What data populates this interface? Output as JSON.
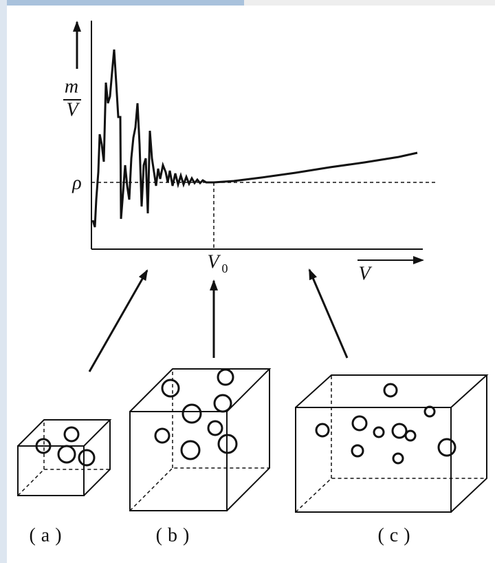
{
  "graph": {
    "y_label_numerator": "m",
    "y_label_denominator": "V",
    "rho": "ρ",
    "v0": "V",
    "v0_subscript": "0",
    "x_label": "V"
  },
  "panels": [
    {
      "label": "(a)"
    },
    {
      "label": "(b)"
    },
    {
      "label": "(c)"
    }
  ]
}
